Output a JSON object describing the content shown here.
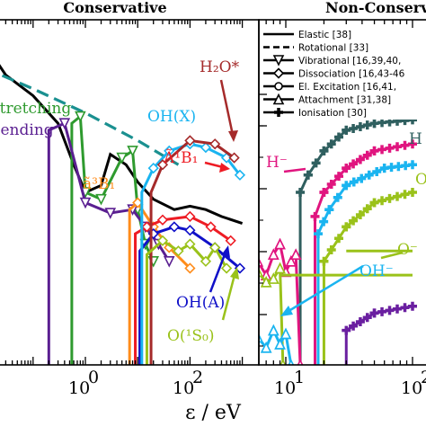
{
  "chart_data": [
    {
      "type": "line",
      "title": "Conservative",
      "xlabel": "ε / eV",
      "xscale": "log",
      "xticks": [
        {
          "value": 1,
          "label": "10",
          "exp": "0"
        },
        {
          "value": 100,
          "label": "10",
          "exp": "2"
        }
      ],
      "colors": {
        "total": "#000000",
        "rotational": "#1a9090",
        "stretching": "#2e9a2e",
        "bending": "#5a1f91",
        "a3B1": "#ff8c1a",
        "A1B1": "#ee1c24",
        "OHA": "#1010c8",
        "OHX": "#1ab4f0",
        "H2O": "#a52a2a",
        "O1S": "#9ac21a"
      },
      "annotations": [
        {
          "id": "stretching",
          "text": "Stretching",
          "color": "#2e9a2e"
        },
        {
          "id": "bending",
          "text": "Bending",
          "color": "#5a1f91"
        },
        {
          "id": "a3B1",
          "text": "ã³B₁",
          "color": "#ff8c1a"
        },
        {
          "id": "A1B1",
          "text": "Ã¹B₁",
          "color": "#ee1c24"
        },
        {
          "id": "OHX",
          "text": "OH(X)",
          "color": "#1ab4f0"
        },
        {
          "id": "H2O",
          "text": "H₂O*",
          "color": "#a52a2a"
        },
        {
          "id": "OHA",
          "text": "OH(A)",
          "color": "#1010c8"
        },
        {
          "id": "O1S",
          "text": "O(¹S₀)",
          "color": "#9ac21a"
        }
      ],
      "series": [
        {
          "id": "total",
          "style": "solid",
          "points": [
            [
              0.012,
              0.93
            ],
            [
              0.03,
              0.84
            ],
            [
              0.1,
              0.78
            ],
            [
              0.3,
              0.7
            ],
            [
              0.6,
              0.58
            ],
            [
              1,
              0.5
            ],
            [
              2,
              0.52
            ],
            [
              3,
              0.61
            ],
            [
              6,
              0.58
            ],
            [
              10,
              0.53
            ],
            [
              20,
              0.48
            ],
            [
              50,
              0.45
            ],
            [
              100,
              0.46
            ],
            [
              200,
              0.45
            ],
            [
              400,
              0.43
            ],
            [
              1000,
              0.41
            ]
          ]
        },
        {
          "id": "rotational",
          "style": "dashed",
          "points": [
            [
              0.012,
              0.86
            ],
            [
              0.1,
              0.8
            ],
            [
              1,
              0.73
            ],
            [
              10,
              0.65
            ],
            [
              60,
              0.58
            ]
          ]
        },
        {
          "id": "stretching",
          "points": [
            [
              0.55,
              0.0
            ],
            [
              0.55,
              0.7
            ],
            [
              0.8,
              0.72
            ],
            [
              1,
              0.5
            ],
            [
              2,
              0.48
            ],
            [
              5,
              0.6
            ],
            [
              8,
              0.62
            ],
            [
              10,
              0.45
            ],
            [
              14,
              0.35
            ],
            [
              20,
              0.3
            ]
          ]
        },
        {
          "id": "bending",
          "points": [
            [
              0.2,
              0.0
            ],
            [
              0.2,
              0.68
            ],
            [
              0.4,
              0.7
            ],
            [
              1,
              0.47
            ],
            [
              3,
              0.44
            ],
            [
              8,
              0.45
            ],
            [
              14,
              0.4
            ],
            [
              25,
              0.35
            ],
            [
              40,
              0.3
            ]
          ]
        },
        {
          "id": "a3B1",
          "points": [
            [
              7,
              0.0
            ],
            [
              7,
              0.45
            ],
            [
              10,
              0.47
            ],
            [
              20,
              0.4
            ],
            [
              40,
              0.34
            ],
            [
              100,
              0.28
            ]
          ]
        },
        {
          "id": "A1B1",
          "points": [
            [
              9,
              0.0
            ],
            [
              9,
              0.38
            ],
            [
              15,
              0.4
            ],
            [
              30,
              0.42
            ],
            [
              100,
              0.43
            ],
            [
              250,
              0.4
            ],
            [
              600,
              0.36
            ]
          ]
        },
        {
          "id": "OHA",
          "points": [
            [
              11,
              0.0
            ],
            [
              11,
              0.33
            ],
            [
              20,
              0.38
            ],
            [
              50,
              0.4
            ],
            [
              100,
              0.39
            ],
            [
              300,
              0.34
            ],
            [
              900,
              0.28
            ]
          ]
        },
        {
          "id": "OHX",
          "points": [
            [
              12,
              0.0
            ],
            [
              12,
              0.5
            ],
            [
              20,
              0.57
            ],
            [
              40,
              0.62
            ],
            [
              100,
              0.64
            ],
            [
              200,
              0.63
            ],
            [
              500,
              0.6
            ],
            [
              900,
              0.55
            ]
          ]
        },
        {
          "id": "H2O",
          "points": [
            [
              18,
              0.0
            ],
            [
              18,
              0.5
            ],
            [
              30,
              0.58
            ],
            [
              100,
              0.65
            ],
            [
              300,
              0.64
            ],
            [
              700,
              0.6
            ]
          ]
        },
        {
          "id": "O1S",
          "points": [
            [
              15,
              0.0
            ],
            [
              15,
              0.32
            ],
            [
              30,
              0.36
            ],
            [
              60,
              0.33
            ],
            [
              100,
              0.35
            ],
            [
              200,
              0.3
            ],
            [
              300,
              0.34
            ],
            [
              500,
              0.28
            ]
          ]
        }
      ]
    },
    {
      "type": "line",
      "title": "Non-Conservative",
      "xscale": "log",
      "xticks": [
        {
          "value": 10,
          "label": "10",
          "exp": "1"
        },
        {
          "value": 100,
          "label": "10",
          "exp": "2"
        }
      ],
      "legend": {
        "placement": "top-right",
        "entries": [
          {
            "label": "Elastic [38]",
            "style": "solid",
            "marker": "none"
          },
          {
            "label": "Rotational [33]",
            "style": "dashed",
            "marker": "none"
          },
          {
            "label": "Vibrational [16,39,40,",
            "style": "solid",
            "marker": "triangle-down"
          },
          {
            "label": "Dissociation [16,43-46",
            "style": "solid",
            "marker": "diamond"
          },
          {
            "label": "El. Excitation [16,41,",
            "style": "solid",
            "marker": "circle"
          },
          {
            "label": "Attachment [31,38]",
            "style": "solid",
            "marker": "triangle-up"
          },
          {
            "label": "Ionisation [30]",
            "style": "solid",
            "marker": "plus"
          }
        ]
      },
      "annotations": [
        {
          "id": "H2",
          "text": "H",
          "color": "#2f5f5f"
        },
        {
          "id": "Hm",
          "text": "H⁻",
          "color": "#e0157f"
        },
        {
          "id": "Oi",
          "text": "O",
          "color": "#9ac21a"
        },
        {
          "id": "Om",
          "text": "O⁻",
          "color": "#9ac21a"
        },
        {
          "id": "OHm",
          "text": "OH⁻",
          "color": "#1ab4f0"
        }
      ],
      "series": [
        {
          "id": "ion-dark",
          "color": "#2f5f5f",
          "marker": "plus",
          "points": [
            [
              13,
              0.0
            ],
            [
              13,
              0.5
            ],
            [
              15,
              0.55
            ],
            [
              20,
              0.62
            ],
            [
              30,
              0.68
            ],
            [
              50,
              0.7
            ],
            [
              100,
              0.71
            ]
          ]
        },
        {
          "id": "ion-pink",
          "color": "#e0157f",
          "marker": "plus",
          "points": [
            [
              17,
              0.0
            ],
            [
              17,
              0.43
            ],
            [
              20,
              0.5
            ],
            [
              30,
              0.57
            ],
            [
              50,
              0.62
            ],
            [
              100,
              0.64
            ]
          ]
        },
        {
          "id": "ion-cyan",
          "color": "#1ab4f0",
          "marker": "plus",
          "points": [
            [
              18,
              0.0
            ],
            [
              18,
              0.38
            ],
            [
              22,
              0.45
            ],
            [
              30,
              0.52
            ],
            [
              60,
              0.57
            ],
            [
              100,
              0.58
            ]
          ]
        },
        {
          "id": "ion-olive",
          "color": "#9ac21a",
          "marker": "plus",
          "points": [
            [
              20,
              0.0
            ],
            [
              20,
              0.3
            ],
            [
              30,
              0.4
            ],
            [
              50,
              0.47
            ],
            [
              100,
              0.5
            ]
          ]
        },
        {
          "id": "ion-purple",
          "color": "#6a1fa0",
          "marker": "plus",
          "points": [
            [
              30,
              0.0
            ],
            [
              30,
              0.1
            ],
            [
              50,
              0.15
            ],
            [
              100,
              0.17
            ]
          ]
        },
        {
          "id": "att-pink",
          "color": "#e0157f",
          "marker": "triangle-up",
          "points": [
            [
              5,
              0.26
            ],
            [
              6,
              0.3
            ],
            [
              7,
              0.26
            ],
            [
              8,
              0.32
            ],
            [
              9,
              0.35
            ],
            [
              10,
              0.27
            ],
            [
              11,
              0.3
            ],
            [
              12,
              0.32
            ],
            [
              13,
              0.0
            ]
          ]
        },
        {
          "id": "att-olive",
          "color": "#9ac21a",
          "marker": "triangle-up",
          "points": [
            [
              5,
              0.22
            ],
            [
              6,
              0.27
            ],
            [
              7,
              0.24
            ],
            [
              8,
              0.25
            ],
            [
              9,
              0.28
            ],
            [
              9.5,
              0.0
            ]
          ]
        },
        {
          "id": "att-cyan",
          "color": "#1ab4f0",
          "marker": "triangle-up",
          "points": [
            [
              5,
              0.04
            ],
            [
              6,
              0.08
            ],
            [
              7,
              0.05
            ],
            [
              8,
              0.1
            ],
            [
              9,
              0.06
            ],
            [
              10,
              0.09
            ],
            [
              11,
              0.0
            ]
          ]
        },
        {
          "id": "olive-level",
          "color": "#9ac21a",
          "marker": "none",
          "points": [
            [
              9,
              0.26
            ],
            [
              100,
              0.26
            ]
          ]
        },
        {
          "id": "olive-level2",
          "color": "#9ac21a",
          "marker": "none",
          "points": [
            [
              30,
              0.33
            ],
            [
              100,
              0.33
            ]
          ]
        }
      ]
    }
  ]
}
